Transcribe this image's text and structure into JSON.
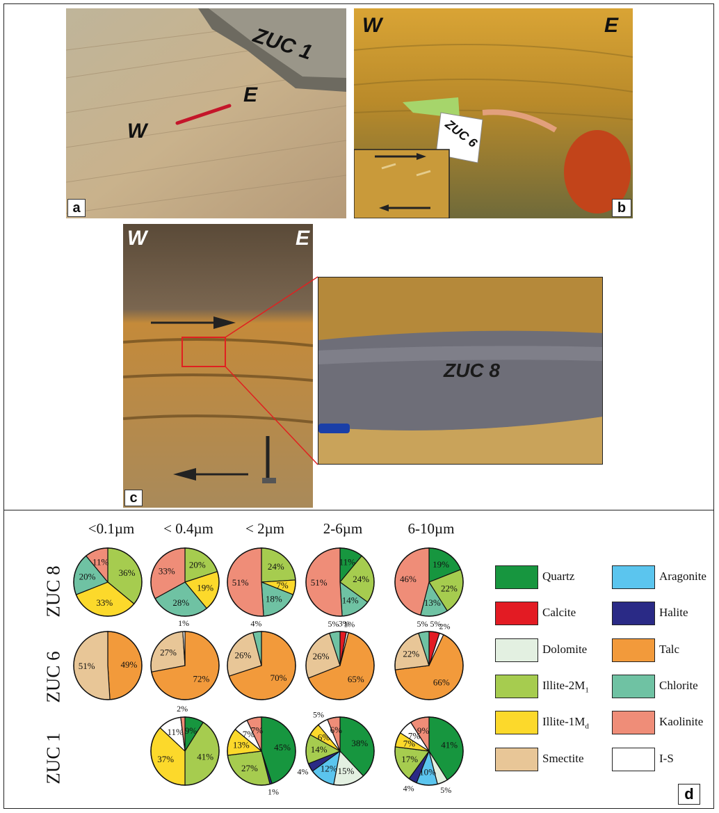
{
  "panels": {
    "a": {
      "label": "a",
      "text_w": "W",
      "text_e": "E",
      "sample": "ZUC 1"
    },
    "b": {
      "label": "b",
      "text_w": "W",
      "text_e": "E",
      "sample": "ZUC 6"
    },
    "c": {
      "label": "c",
      "text_w": "W",
      "text_e": "E",
      "sample": "ZUC 8"
    },
    "d": {
      "label": "d"
    }
  },
  "colors": {
    "Quartz": "#17963f",
    "Calcite": "#e31b23",
    "Dolomite": "#e3f0e1",
    "Illite-2M1": "#a6cc4f",
    "Illite-1Md": "#fcd92b",
    "Smectite": "#e8c697",
    "Aragonite": "#5bc5ee",
    "Halite": "#2a2a86",
    "Talc": "#f29a3b",
    "Chlorite": "#6fc2a3",
    "Kaolinite": "#ef8d78",
    "I-S": "#ffffff"
  },
  "legend": {
    "left": [
      {
        "key": "Quartz",
        "label": "Quartz",
        "sub": ""
      },
      {
        "key": "Calcite",
        "label": "Calcite",
        "sub": ""
      },
      {
        "key": "Dolomite",
        "label": "Dolomite",
        "sub": ""
      },
      {
        "key": "Illite-2M1",
        "label": "Illite-2M",
        "sub": "1"
      },
      {
        "key": "Illite-1Md",
        "label": "Illite-1M",
        "sub": "d"
      },
      {
        "key": "Smectite",
        "label": "Smectite",
        "sub": ""
      }
    ],
    "right": [
      {
        "key": "Aragonite",
        "label": "Aragonite",
        "sub": ""
      },
      {
        "key": "Halite",
        "label": "Halite",
        "sub": ""
      },
      {
        "key": "Talc",
        "label": "Talc",
        "sub": ""
      },
      {
        "key": "Chlorite",
        "label": "Chlorite",
        "sub": ""
      },
      {
        "key": "Kaolinite",
        "label": "Kaolinite",
        "sub": ""
      },
      {
        "key": "I-S",
        "label": "I-S",
        "sub": ""
      }
    ]
  },
  "chart_data": {
    "type": "pie",
    "columns": [
      "<0.1µm",
      "< 0.4µm",
      "< 2µm",
      "2-6µm",
      "6-10µm"
    ],
    "rows": [
      "ZUC 8",
      "ZUC 6",
      "ZUC 1"
    ],
    "pies": [
      {
        "row": "ZUC 8",
        "col": 0,
        "slices": [
          [
            "Illite-2M1",
            36
          ],
          [
            "Illite-1Md",
            33
          ],
          [
            "Chlorite",
            20
          ],
          [
            "Kaolinite",
            11
          ]
        ]
      },
      {
        "row": "ZUC 8",
        "col": 1,
        "slices": [
          [
            "Illite-2M1",
            20
          ],
          [
            "Illite-1Md",
            19
          ],
          [
            "Chlorite",
            28
          ],
          [
            "Kaolinite",
            33
          ]
        ]
      },
      {
        "row": "ZUC 8",
        "col": 2,
        "slices": [
          [
            "Illite-2M1",
            24
          ],
          [
            "Illite-1Md",
            7
          ],
          [
            "Chlorite",
            18
          ],
          [
            "Kaolinite",
            51
          ]
        ]
      },
      {
        "row": "ZUC 8",
        "col": 3,
        "slices": [
          [
            "Quartz",
            11
          ],
          [
            "Illite-2M1",
            24
          ],
          [
            "Chlorite",
            14
          ],
          [
            "Kaolinite",
            51
          ]
        ]
      },
      {
        "row": "ZUC 8",
        "col": 4,
        "slices": [
          [
            "Quartz",
            19
          ],
          [
            "Illite-2M1",
            22
          ],
          [
            "Chlorite",
            13
          ],
          [
            "Kaolinite",
            46
          ]
        ]
      },
      {
        "row": "ZUC 6",
        "col": 0,
        "slices": [
          [
            "Talc",
            49
          ],
          [
            "Smectite",
            51
          ]
        ]
      },
      {
        "row": "ZUC 6",
        "col": 1,
        "slices": [
          [
            "Talc",
            72
          ],
          [
            "Smectite",
            27
          ],
          [
            "I-S",
            1
          ]
        ]
      },
      {
        "row": "ZUC 6",
        "col": 2,
        "slices": [
          [
            "Talc",
            70
          ],
          [
            "Smectite",
            26
          ],
          [
            "Chlorite",
            4
          ]
        ]
      },
      {
        "row": "ZUC 6",
        "col": 3,
        "slices": [
          [
            "Calcite",
            3
          ],
          [
            "I-S",
            1
          ],
          [
            "Talc",
            65
          ],
          [
            "Smectite",
            26
          ],
          [
            "Chlorite",
            5
          ]
        ]
      },
      {
        "row": "ZUC 6",
        "col": 4,
        "slices": [
          [
            "Calcite",
            5
          ],
          [
            "I-S",
            2
          ],
          [
            "Talc",
            66
          ],
          [
            "Smectite",
            22
          ],
          [
            "Chlorite",
            5
          ]
        ]
      },
      {
        "row": "ZUC 1",
        "col": 1,
        "slices": [
          [
            "Quartz",
            9
          ],
          [
            "Illite-2M1",
            41
          ],
          [
            "Illite-1Md",
            37
          ],
          [
            "I-S",
            11
          ],
          [
            "Kaolinite",
            2
          ]
        ]
      },
      {
        "row": "ZUC 1",
        "col": 2,
        "slices": [
          [
            "Quartz",
            45
          ],
          [
            "Halite",
            1
          ],
          [
            "Illite-2M1",
            27
          ],
          [
            "Illite-1Md",
            13
          ],
          [
            "I-S",
            7
          ],
          [
            "Kaolinite",
            7
          ]
        ]
      },
      {
        "row": "ZUC 1",
        "col": 3,
        "slices": [
          [
            "Quartz",
            38
          ],
          [
            "Dolomite",
            15
          ],
          [
            "Aragonite",
            12
          ],
          [
            "Halite",
            4
          ],
          [
            "Illite-2M1",
            14
          ],
          [
            "Illite-1Md",
            6
          ],
          [
            "I-S",
            5
          ],
          [
            "Kaolinite",
            6
          ]
        ]
      },
      {
        "row": "ZUC 1",
        "col": 4,
        "slices": [
          [
            "Quartz",
            41
          ],
          [
            "Dolomite",
            5
          ],
          [
            "Aragonite",
            10
          ],
          [
            "Halite",
            4
          ],
          [
            "Illite-2M1",
            17
          ],
          [
            "Illite-1Md",
            7
          ],
          [
            "I-S",
            7
          ],
          [
            "Kaolinite",
            9
          ]
        ]
      }
    ]
  }
}
